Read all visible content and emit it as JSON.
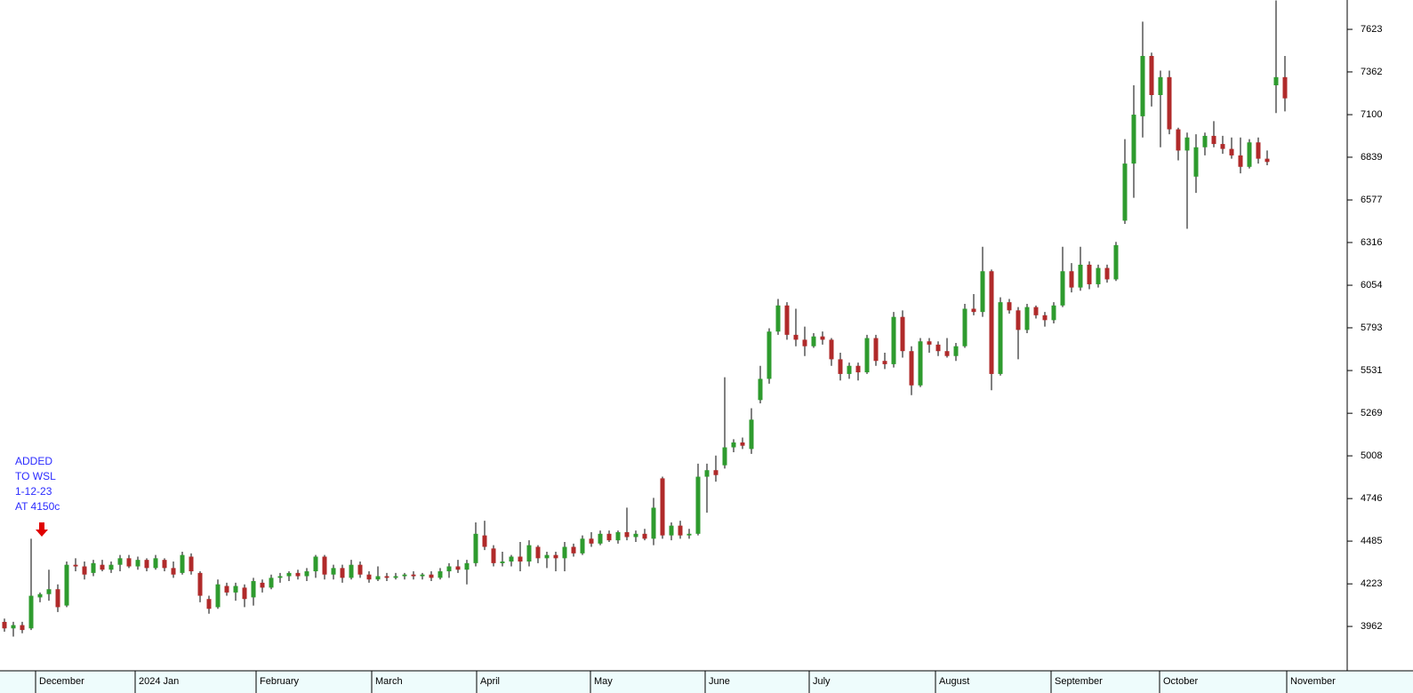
{
  "chart_data": {
    "type": "candlestick",
    "annotation": [
      "ADDED",
      "TO WSL",
      "1-12-23",
      "AT 4150c"
    ],
    "up_color": "#2e9b2e",
    "down_color": "#b02a2a",
    "xlim": [
      -0.5,
      151
    ],
    "xticks": [
      {
        "value": 3.5,
        "label": "December"
      },
      {
        "value": 14.7,
        "label": "2024 Jan"
      },
      {
        "value": 28.3,
        "label": "February"
      },
      {
        "value": 41.3,
        "label": "March"
      },
      {
        "value": 53.1,
        "label": "April"
      },
      {
        "value": 65.9,
        "label": "May"
      },
      {
        "value": 78.8,
        "label": "June"
      },
      {
        "value": 90.5,
        "label": "July"
      },
      {
        "value": 104.7,
        "label": "August"
      },
      {
        "value": 117.7,
        "label": "September"
      },
      {
        "value": 129.9,
        "label": "October"
      },
      {
        "value": 144.2,
        "label": "November"
      }
    ],
    "ylim": [
      3690,
      7803
    ],
    "yticks": [
      3962,
      4223,
      4485,
      4746,
      5008,
      5269,
      5531,
      5793,
      6054,
      6316,
      6577,
      6839,
      7100,
      7362,
      7623
    ],
    "open": [
      3990,
      3950,
      3970,
      3950,
      4140,
      4160,
      4190,
      4090,
      4340,
      4330,
      4290,
      4340,
      4310,
      4340,
      4380,
      4330,
      4370,
      4320,
      4370,
      4320,
      4290,
      4390,
      4290,
      4130,
      4080,
      4210,
      4170,
      4200,
      4140,
      4230,
      4200,
      4260,
      4270,
      4290,
      4270,
      4300,
      4390,
      4280,
      4320,
      4260,
      4340,
      4280,
      4250,
      4270,
      4260,
      4270,
      4280,
      4270,
      4280,
      4260,
      4300,
      4330,
      4310,
      4350,
      4520,
      4440,
      4350,
      4360,
      4390,
      4360,
      4450,
      4380,
      4400,
      4380,
      4450,
      4410,
      4500,
      4470,
      4530,
      4490,
      4540,
      4510,
      4530,
      4500,
      4870,
      4520,
      4580,
      4520,
      4530,
      4880,
      4920,
      4950,
      5060,
      5090,
      5050,
      5350,
      5480,
      5770,
      5930,
      5750,
      5720,
      5680,
      5740,
      5720,
      5600,
      5510,
      5560,
      5520,
      5730,
      5590,
      5570,
      5860,
      5650,
      5440,
      5710,
      5690,
      5650,
      5620,
      5680,
      5910,
      5890,
      6140,
      5510,
      5950,
      5900,
      5780,
      5920,
      5870,
      5840,
      5930,
      6140,
      6040,
      6180,
      6060,
      6160,
      6090,
      6450,
      6800,
      7090,
      7460,
      7220,
      7330,
      7010,
      6880,
      6720,
      6900,
      6970,
      6920,
      6890,
      6850,
      6780,
      6930,
      6830,
      7280,
      7330
    ],
    "high": [
      4010,
      3990,
      3990,
      4500,
      4170,
      4310,
      4220,
      4360,
      4380,
      4360,
      4370,
      4370,
      4360,
      4400,
      4400,
      4390,
      4380,
      4400,
      4380,
      4360,
      4420,
      4410,
      4300,
      4150,
      4250,
      4230,
      4230,
      4220,
      4260,
      4250,
      4280,
      4290,
      4300,
      4310,
      4320,
      4400,
      4400,
      4340,
      4340,
      4370,
      4360,
      4300,
      4330,
      4290,
      4290,
      4290,
      4300,
      4290,
      4300,
      4320,
      4350,
      4370,
      4370,
      4600,
      4610,
      4460,
      4420,
      4400,
      4480,
      4490,
      4460,
      4420,
      4420,
      4480,
      4470,
      4520,
      4540,
      4550,
      4550,
      4550,
      4690,
      4550,
      4560,
      4750,
      4880,
      4600,
      4610,
      4560,
      4960,
      4960,
      5010,
      5490,
      5110,
      5120,
      5300,
      5560,
      5790,
      5970,
      5950,
      5910,
      5800,
      5760,
      5770,
      5730,
      5640,
      5580,
      5580,
      5750,
      5750,
      5640,
      5890,
      5900,
      5680,
      5730,
      5730,
      5710,
      5730,
      5700,
      5940,
      6000,
      6290,
      6150,
      5980,
      5970,
      5920,
      5940,
      5930,
      5890,
      5950,
      6290,
      6190,
      6290,
      6200,
      6180,
      6180,
      6320,
      6950,
      7280,
      7670,
      7480,
      7370,
      7370,
      7020,
      6990,
      6980,
      6990,
      7060,
      6970,
      6960,
      6960,
      6950,
      6960,
      6880,
      7800,
      7460
    ],
    "low": [
      3930,
      3900,
      3920,
      3940,
      4110,
      4120,
      4050,
      4080,
      4300,
      4250,
      4270,
      4300,
      4290,
      4300,
      4320,
      4310,
      4300,
      4310,
      4300,
      4260,
      4280,
      4280,
      4110,
      4040,
      4070,
      4150,
      4120,
      4080,
      4090,
      4170,
      4190,
      4230,
      4240,
      4250,
      4240,
      4260,
      4250,
      4250,
      4230,
      4250,
      4260,
      4230,
      4240,
      4240,
      4250,
      4250,
      4250,
      4250,
      4240,
      4250,
      4260,
      4290,
      4220,
      4330,
      4430,
      4330,
      4330,
      4330,
      4300,
      4330,
      4350,
      4320,
      4300,
      4300,
      4390,
      4400,
      4450,
      4460,
      4480,
      4470,
      4490,
      4480,
      4490,
      4460,
      4500,
      4490,
      4500,
      4500,
      4520,
      4660,
      4850,
      4930,
      5030,
      5050,
      5020,
      5330,
      5450,
      5750,
      5720,
      5680,
      5620,
      5670,
      5690,
      5560,
      5470,
      5480,
      5470,
      5510,
      5560,
      5540,
      5550,
      5610,
      5380,
      5430,
      5640,
      5620,
      5610,
      5590,
      5670,
      5870,
      5860,
      5410,
      5500,
      5880,
      5600,
      5760,
      5850,
      5800,
      5820,
      5920,
      6010,
      6020,
      6030,
      6040,
      6070,
      6080,
      6430,
      6590,
      6960,
      7150,
      6900,
      6980,
      6820,
      6400,
      6620,
      6850,
      6900,
      6860,
      6830,
      6740,
      6770,
      6800,
      6790,
      7110,
      7120
    ],
    "close": [
      3950,
      3970,
      3940,
      4150,
      4160,
      4190,
      4080,
      4340,
      4330,
      4280,
      4350,
      4310,
      4340,
      4380,
      4330,
      4370,
      4320,
      4380,
      4320,
      4280,
      4400,
      4300,
      4150,
      4070,
      4220,
      4170,
      4210,
      4130,
      4240,
      4200,
      4260,
      4270,
      4290,
      4270,
      4300,
      4390,
      4280,
      4320,
      4260,
      4340,
      4280,
      4250,
      4270,
      4260,
      4270,
      4280,
      4270,
      4280,
      4260,
      4300,
      4330,
      4310,
      4350,
      4530,
      4450,
      4350,
      4360,
      4390,
      4360,
      4460,
      4380,
      4400,
      4380,
      4450,
      4410,
      4500,
      4470,
      4530,
      4490,
      4540,
      4510,
      4530,
      4500,
      4690,
      4520,
      4580,
      4520,
      4530,
      4880,
      4920,
      4890,
      5060,
      5090,
      5070,
      5230,
      5480,
      5770,
      5930,
      5750,
      5720,
      5680,
      5740,
      5720,
      5600,
      5510,
      5560,
      5520,
      5730,
      5590,
      5570,
      5860,
      5650,
      5440,
      5710,
      5690,
      5650,
      5620,
      5680,
      5910,
      5890,
      6140,
      5510,
      5950,
      5900,
      5780,
      5920,
      5870,
      5840,
      5930,
      6140,
      6040,
      6180,
      6060,
      6160,
      6090,
      6300,
      6800,
      7100,
      7460,
      7220,
      7330,
      7010,
      6880,
      6960,
      6900,
      6970,
      6920,
      6890,
      6850,
      6780,
      6930,
      6830,
      6810,
      7330,
      7200
    ]
  }
}
